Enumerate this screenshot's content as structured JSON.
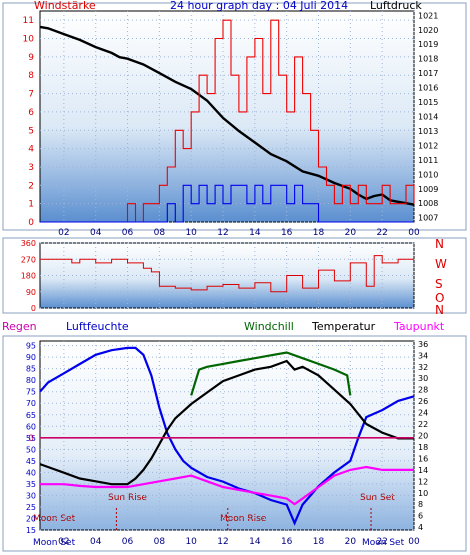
{
  "chart_data": [
    {
      "type": "line",
      "panel": "top",
      "title": "24 hour graph day : 04 Juli 2014",
      "left_axis_label": "Windstärke",
      "right_axis_label": "Luftdruck",
      "x_ticks": [
        "02",
        "04",
        "06",
        "08",
        "10",
        "12",
        "14",
        "16",
        "18",
        "20",
        "22",
        "00"
      ],
      "left_ticks": [
        "0",
        "1",
        "2",
        "3",
        "4",
        "5",
        "6",
        "7",
        "8",
        "9",
        "10",
        "11"
      ],
      "right_ticks": [
        "1007",
        "1008",
        "1009",
        "1010",
        "1011",
        "1012",
        "1013",
        "1014",
        "1015",
        "1016",
        "1017",
        "1018",
        "1019",
        "1020",
        "1021"
      ],
      "xlim": [
        0.5,
        24
      ],
      "left_ylim": [
        0,
        11.5
      ],
      "right_ylim": [
        1006.7,
        1021.3
      ],
      "grid": true,
      "series": [
        {
          "axis": "right",
          "color": "#000000",
          "x": [
            0.5,
            1,
            2,
            3,
            4,
            5,
            5.5,
            6,
            6.5,
            7,
            8,
            9,
            10,
            11,
            12,
            13,
            14,
            15,
            16,
            17,
            18,
            19,
            20,
            20.5,
            21,
            21.5,
            22,
            22.5,
            23,
            23.5,
            24
          ],
          "y": [
            1020.2,
            1020.1,
            1019.7,
            1019.3,
            1018.8,
            1018.4,
            1018.1,
            1018.0,
            1017.8,
            1017.6,
            1017.0,
            1016.4,
            1015.9,
            1015.1,
            1013.9,
            1013.0,
            1012.2,
            1011.4,
            1010.9,
            1010.2,
            1009.9,
            1009.4,
            1009.0,
            1008.6,
            1008.3,
            1008.5,
            1008.6,
            1008.2,
            1008.1,
            1008.0,
            1007.9
          ]
        },
        {
          "axis": "left",
          "color": "#ee0000",
          "x": [
            0.5,
            5.5,
            6,
            6.5,
            7,
            7.5,
            8,
            8.5,
            9,
            9.5,
            10,
            10.5,
            11,
            11.5,
            12,
            12.5,
            13,
            13.5,
            14,
            14.5,
            15,
            15.5,
            16,
            16.5,
            17,
            17.5,
            18,
            18.5,
            19,
            19.5,
            20,
            20.5,
            21,
            21.5,
            22,
            22.5,
            23,
            23.5,
            24
          ],
          "y": [
            0,
            0,
            1,
            0,
            1,
            1,
            2,
            3,
            5,
            4,
            6,
            8,
            7,
            10,
            11,
            8,
            6,
            9,
            10,
            7,
            11,
            8,
            6,
            9,
            7,
            5,
            3,
            2,
            1,
            2,
            1,
            2,
            1,
            1,
            2,
            1,
            1,
            2,
            1
          ]
        },
        {
          "axis": "left",
          "color": "#0000ee",
          "x": [
            0.5,
            8,
            8.5,
            9,
            9.5,
            10,
            10.5,
            11,
            11.5,
            12,
            12.5,
            13,
            13.5,
            14,
            14.5,
            15,
            15.5,
            16,
            16.5,
            17,
            17.5,
            18,
            24
          ],
          "y": [
            0,
            0,
            1,
            0,
            2,
            1,
            2,
            1,
            2,
            1,
            2,
            2,
            1,
            2,
            1,
            2,
            2,
            1,
            2,
            1,
            1,
            0,
            0
          ]
        }
      ]
    },
    {
      "type": "line",
      "panel": "middle",
      "right_axis_label": "N W S O N",
      "left_ticks": [
        "0",
        "90",
        "180",
        "270",
        "360"
      ],
      "ylim": [
        0,
        360
      ],
      "grid": true,
      "series": [
        {
          "color": "#dd0000",
          "x": [
            0.5,
            2,
            2.5,
            3,
            4,
            5,
            6,
            7,
            7.5,
            8,
            9,
            10,
            11,
            12,
            13,
            14,
            15,
            16,
            17,
            18,
            19,
            20,
            21,
            21.5,
            22,
            23,
            24
          ],
          "y": [
            270,
            270,
            250,
            270,
            250,
            270,
            250,
            220,
            200,
            120,
            110,
            100,
            120,
            130,
            110,
            140,
            90,
            180,
            110,
            210,
            150,
            250,
            120,
            290,
            250,
            270,
            270
          ]
        }
      ]
    },
    {
      "type": "line",
      "panel": "bottom",
      "legend": [
        "Regen",
        "Luftfeuchte",
        "Windchill",
        "Temperatur",
        "Taupunkt"
      ],
      "left_ticks": [
        "15",
        "20",
        "25",
        "30",
        "35",
        "40",
        "45",
        "50",
        "55",
        "60",
        "65",
        "70",
        "75",
        "80",
        "85",
        "90",
        "95"
      ],
      "right_ticks": [
        "4",
        "6",
        "8",
        "10",
        "12",
        "14",
        "16",
        "18",
        "20",
        "22",
        "24",
        "26",
        "28",
        "30",
        "32",
        "34",
        "36"
      ],
      "left_ylim": [
        15,
        97
      ],
      "right_ylim": [
        3.5,
        36.5
      ],
      "rain_label": "0",
      "grid": true,
      "events": [
        {
          "label": "Moon Set",
          "position": "left"
        },
        {
          "label": "Sun Rise",
          "x": 5.3
        },
        {
          "label": "Moon Rise",
          "x": 12.3
        },
        {
          "label": "Sun Set",
          "x": 21.3
        }
      ],
      "bottom_labels": {
        "left": "Moon Set",
        "right": "Moon Set"
      },
      "series": [
        {
          "name": "Luftfeuchte",
          "axis": "left",
          "color": "#0000ee",
          "x": [
            0.5,
            1,
            2,
            3,
            4,
            5,
            6,
            6.5,
            7,
            7.5,
            8,
            8.5,
            9,
            9.5,
            10,
            11,
            12,
            13,
            14,
            15,
            16,
            16.5,
            17,
            17.5,
            18,
            19,
            20,
            20.5,
            21,
            22,
            23,
            24
          ],
          "y": [
            75,
            79,
            83,
            87,
            91,
            93,
            94,
            94,
            91,
            82,
            68,
            57,
            50,
            45,
            42,
            38,
            36,
            33,
            31,
            28,
            26,
            18,
            26,
            30,
            34,
            40,
            45,
            55,
            64,
            67,
            71,
            73
          ]
        },
        {
          "name": "Windchill",
          "axis": "right",
          "color": "#006600",
          "x": [
            10,
            10.5,
            11,
            12,
            13,
            14,
            15,
            16,
            17,
            18,
            19,
            19.8,
            20
          ],
          "y": [
            27.0,
            31.5,
            32.0,
            32.5,
            33.0,
            33.5,
            34.0,
            34.5,
            33.5,
            32.5,
            31.5,
            30.5,
            27.0
          ]
        },
        {
          "name": "Temperatur",
          "axis": "right",
          "color": "#000000",
          "x": [
            0.5,
            1,
            2,
            3,
            4,
            5,
            6,
            6.5,
            7,
            7.5,
            8,
            8.5,
            9,
            10,
            11,
            12,
            13,
            14,
            15,
            16,
            16.5,
            17,
            18,
            19,
            20,
            21,
            22,
            23,
            24
          ],
          "y": [
            15.0,
            14.5,
            13.5,
            12.5,
            12.0,
            11.5,
            11.5,
            12.5,
            14.0,
            16.0,
            18.5,
            21.0,
            23.0,
            25.5,
            27.5,
            29.5,
            30.5,
            31.5,
            32.0,
            33.0,
            31.5,
            32.0,
            30.5,
            28.0,
            25.5,
            22.0,
            20.5,
            19.5,
            19.5
          ]
        },
        {
          "name": "Taupunkt",
          "axis": "right",
          "color": "#ff00ff",
          "x": [
            0.5,
            1,
            2,
            3,
            4,
            5,
            6,
            7,
            8,
            9,
            10,
            11,
            12,
            13,
            14,
            15,
            16,
            16.5,
            17,
            18,
            19,
            20,
            21,
            22,
            23,
            24
          ],
          "y": [
            11.5,
            11.5,
            11.5,
            11.2,
            11.0,
            11.0,
            11.0,
            11.5,
            12.0,
            12.5,
            13.0,
            12.0,
            11.0,
            10.5,
            10.0,
            9.5,
            9.0,
            8.0,
            9.0,
            11.0,
            13.0,
            14.0,
            14.5,
            14.0,
            14.0,
            14.0
          ]
        },
        {
          "name": "Regen",
          "axis": "left",
          "color": "#cc0066",
          "x": [
            0.5,
            24
          ],
          "y": [
            55,
            55
          ]
        }
      ]
    }
  ]
}
